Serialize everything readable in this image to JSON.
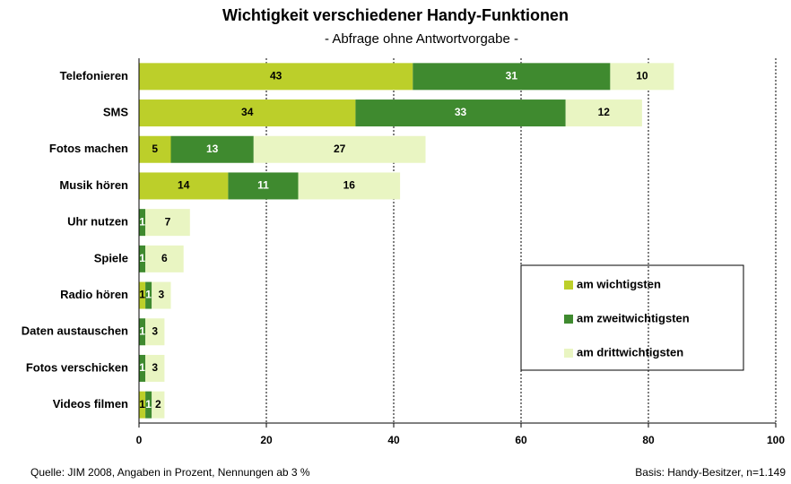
{
  "chart_data": {
    "type": "stacked-bar-horizontal",
    "title": "Wichtigkeit verschiedener Handy-Funktionen",
    "subtitle": "- Abfrage ohne Antwortvorgabe -",
    "categories": [
      "Telefonieren",
      "SMS",
      "Fotos machen",
      "Musik hören",
      "Uhr nutzen",
      "Spiele",
      "Radio hören",
      "Daten austauschen",
      "Fotos verschicken",
      "Videos filmen"
    ],
    "series": [
      {
        "name": "am wichtigsten",
        "color": "#bccf2a",
        "label_color": "#000000",
        "values": [
          43,
          34,
          5,
          14,
          null,
          null,
          1,
          null,
          null,
          1
        ]
      },
      {
        "name": "am zweitwichtigsten",
        "color": "#3f8a2f",
        "label_color": "#ffffff",
        "values": [
          31,
          33,
          13,
          11,
          1,
          1,
          1,
          1,
          1,
          1
        ]
      },
      {
        "name": "am drittwichtigsten",
        "color": "#e9f5c2",
        "label_color": "#000000",
        "values": [
          10,
          12,
          27,
          16,
          7,
          6,
          3,
          3,
          3,
          2
        ]
      }
    ],
    "xlim": [
      0,
      100
    ],
    "xticks": [
      0,
      20,
      40,
      60,
      80,
      100
    ],
    "grid": true,
    "source": "Quelle: JIM 2008, Angaben in Prozent, Nennungen ab 3 %",
    "basis": "Basis: Handy-Besitzer, n=1.149"
  }
}
